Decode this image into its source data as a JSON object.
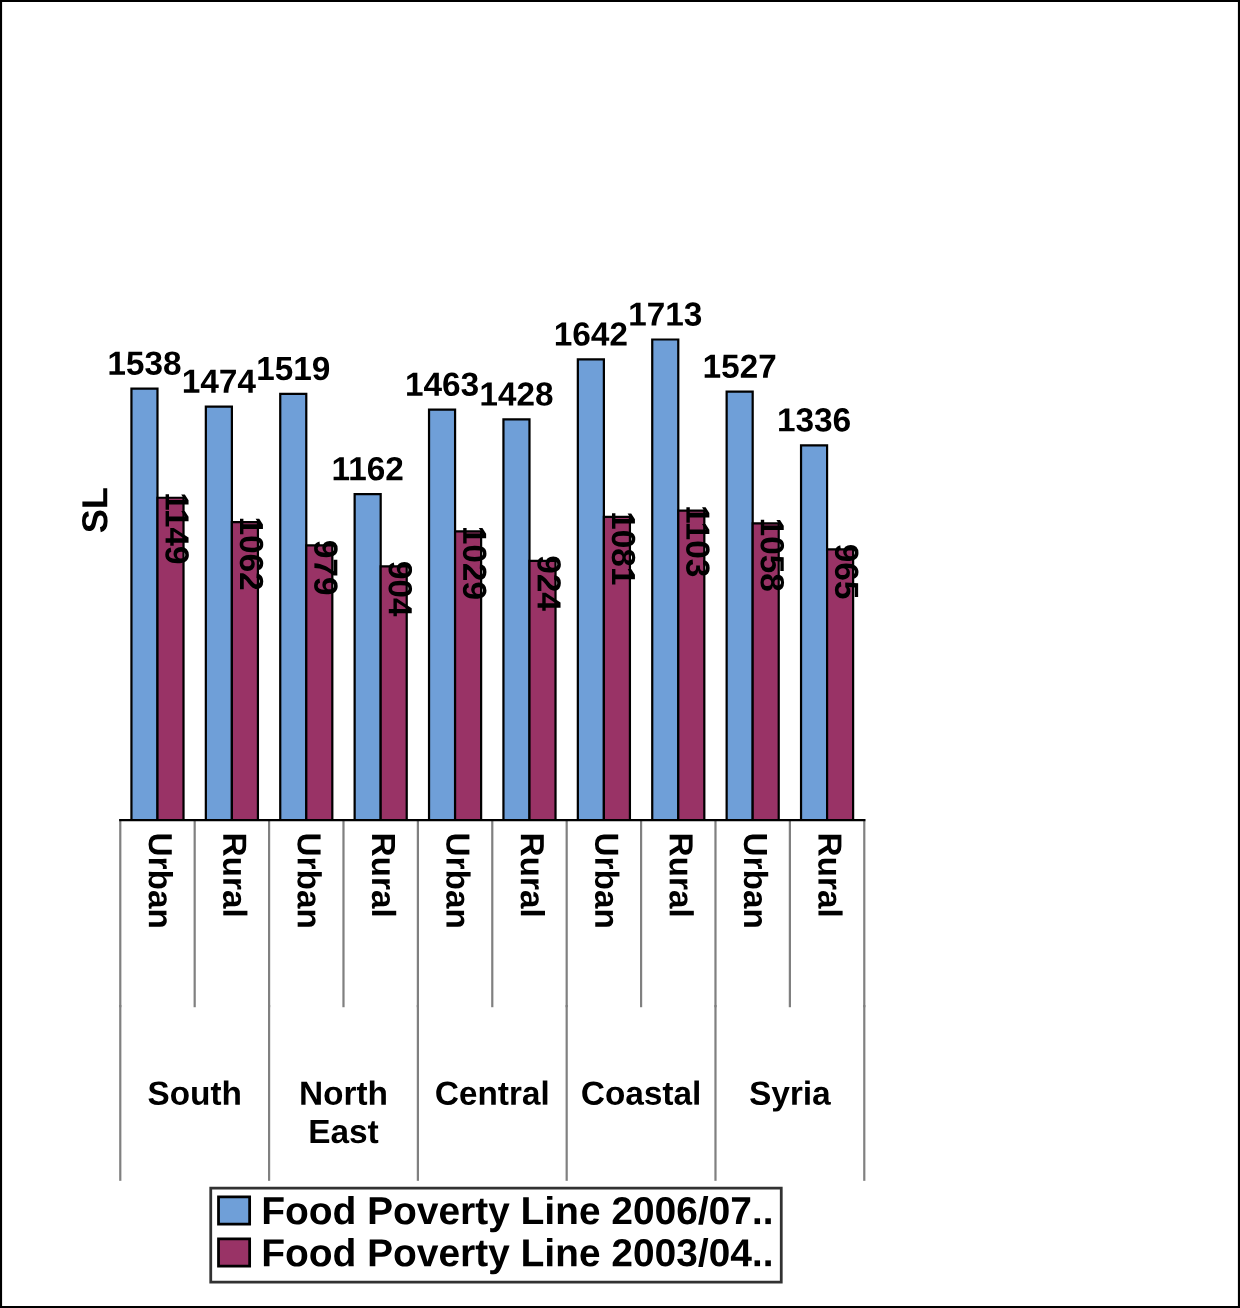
{
  "chart_data": {
    "type": "bar",
    "ylabel": "SL",
    "categories": [
      "Urban",
      "Rural",
      "Urban",
      "Rural",
      "Urban",
      "Rural",
      "Urban",
      "Rural",
      "Urban",
      "Rural"
    ],
    "series": [
      {
        "name": "Food Poverty Line 2006/07..",
        "color": "#6f9fd8",
        "values": [
          1538,
          1474,
          1519,
          1162,
          1463,
          1428,
          1642,
          1713,
          1527,
          1336
        ]
      },
      {
        "name": "Food Poverty Line 2003/04..",
        "color": "#993366",
        "values": [
          1149,
          1062,
          979,
          904,
          1029,
          924,
          1081,
          1103,
          1058,
          965
        ]
      }
    ],
    "annotations": [
      "South",
      "North East",
      "Central",
      "Coastal",
      "Syria"
    ],
    "data_labels": true,
    "legend": "bottom"
  }
}
